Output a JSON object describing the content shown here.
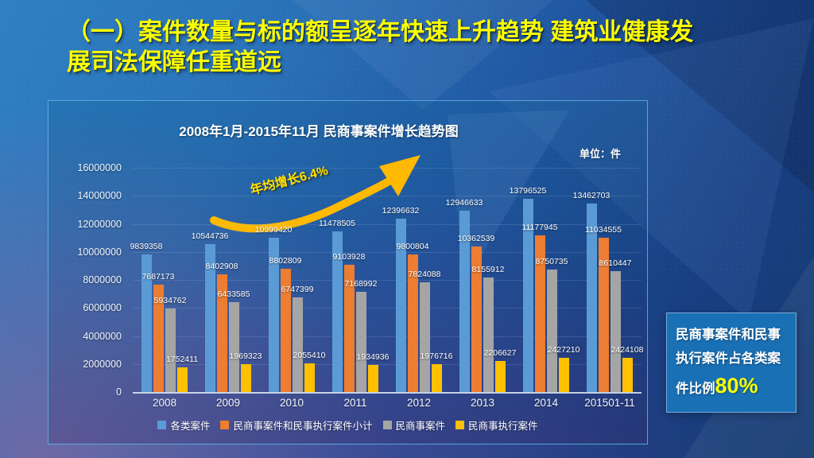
{
  "slide": {
    "title_lines": [
      "（一）案件数量与标的额呈逐年快速上升趋势 建筑业健康发",
      "展司法保障任重道远"
    ],
    "title_color": "#fcff00",
    "background_color": "#2a72b8"
  },
  "chart_data": {
    "type": "bar",
    "title": "2008年1月-2015年11月 民商事案件增长趋势图",
    "unit_label": "单位：件",
    "annotation": "年均增长6.4%",
    "annotation_color": "#ffb900",
    "categories": [
      "2008",
      "2009",
      "2010",
      "2011",
      "2012",
      "2013",
      "2014",
      "201501-11"
    ],
    "series": [
      {
        "name": "各类案件",
        "color": "#5b9bd5",
        "values": [
          9839358,
          10544736,
          10999420,
          11478505,
          12396632,
          12946633,
          13796525,
          13462703
        ]
      },
      {
        "name": "民商事案件和民事执行案件小计",
        "color": "#ed7d31",
        "values": [
          7687173,
          8402908,
          8802809,
          9103928,
          9800804,
          10362539,
          11177945,
          11034555
        ]
      },
      {
        "name": "民商事案件",
        "color": "#a5a5a5",
        "values": [
          5934762,
          6433585,
          6747399,
          7168992,
          7824088,
          8155912,
          8750735,
          8610447
        ]
      },
      {
        "name": "民商事执行案件",
        "color": "#ffc000",
        "values": [
          1752411,
          1969323,
          2055410,
          1934936,
          1976716,
          2206627,
          2427210,
          2424108
        ]
      }
    ],
    "ylim": [
      0,
      16000000
    ],
    "ytick_step": 2000000,
    "grid": true,
    "legend_position": "bottom"
  },
  "info_box": {
    "text": "民商事案件和民事执行案件占各类案",
    "text2": "件比例",
    "highlight": "80%",
    "highlight_color": "#f7ff00",
    "bg_color": "#1a70b5"
  }
}
